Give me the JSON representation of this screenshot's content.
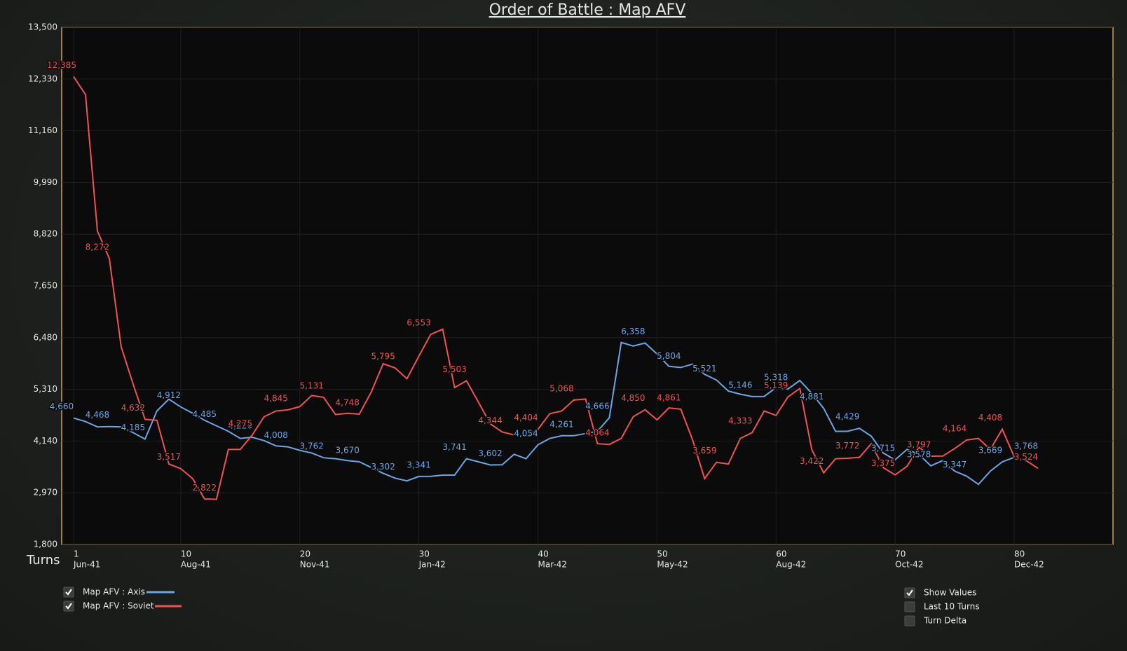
{
  "chart_data": {
    "type": "line",
    "title": "Order of Battle : Map AFV",
    "x_label": "Turns",
    "x": [
      1,
      2,
      3,
      4,
      5,
      6,
      7,
      8,
      9,
      10,
      11,
      12,
      13,
      14,
      15,
      16,
      17,
      18,
      19,
      20,
      21,
      22,
      23,
      24,
      25,
      26,
      27,
      28,
      29,
      30,
      31,
      32,
      33,
      34,
      35,
      36,
      37,
      38,
      39,
      40,
      41,
      42,
      43,
      44,
      45,
      46,
      47,
      48,
      49,
      50,
      51,
      52,
      53,
      54,
      55,
      56,
      57,
      58,
      59,
      60,
      61,
      62,
      63,
      64,
      65,
      66,
      67,
      68,
      69,
      70,
      71,
      72,
      73,
      74,
      75,
      76,
      77,
      78,
      79,
      80,
      81,
      82
    ],
    "xlim": [
      0,
      88.3
    ],
    "xticks": [
      1,
      10,
      20,
      30,
      40,
      50,
      60,
      70,
      80
    ],
    "xtick_dates": [
      "Jun-41",
      "Aug-41",
      "Nov-41",
      "Jan-42",
      "Mar-42",
      "May-42",
      "Aug-42",
      "Oct-42",
      "Dec-42"
    ],
    "ylim": [
      1800,
      13500
    ],
    "yticks": [
      {
        "value": 1800,
        "label": "1,800"
      },
      {
        "value": 2970,
        "label": "2,970"
      },
      {
        "value": 4140,
        "label": "4,140"
      },
      {
        "value": 5310,
        "label": "5,310"
      },
      {
        "value": 6480,
        "label": "6,480"
      },
      {
        "value": 7650,
        "label": "7,650"
      },
      {
        "value": 8820,
        "label": "8,820"
      },
      {
        "value": 9990,
        "label": "9,990"
      },
      {
        "value": 11160,
        "label": "11,160"
      },
      {
        "value": 12330,
        "label": "12,330"
      },
      {
        "value": 13500,
        "label": "13,500"
      }
    ],
    "grid": true,
    "series": [
      {
        "name": "Map AFV : Axis",
        "color": "#6aa6e6",
        "checked": true,
        "values": [
          4660,
          4580,
          4460,
          4468,
          4460,
          4330,
          4185,
          4820,
          5090,
          4912,
          4770,
          4610,
          4485,
          4360,
          4200,
          4226,
          4150,
          4030,
          4008,
          3930,
          3870,
          3762,
          3740,
          3700,
          3670,
          3540,
          3410,
          3302,
          3240,
          3340,
          3341,
          3370,
          3370,
          3741,
          3670,
          3600,
          3602,
          3840,
          3740,
          4054,
          4200,
          4260,
          4261,
          4310,
          4360,
          4666,
          6370,
          6290,
          6358,
          6110,
          5830,
          5804,
          5880,
          5650,
          5521,
          5270,
          5200,
          5146,
          5150,
          5350,
          5318,
          5510,
          5220,
          4881,
          4360,
          4360,
          4429,
          4250,
          3870,
          3715,
          3950,
          3840,
          3578,
          3700,
          3460,
          3347,
          3160,
          3460,
          3669,
          3770,
          3700,
          3768
        ],
        "value_labels": [
          "4,660",
          null,
          null,
          "4,468",
          null,
          null,
          "4,185",
          null,
          null,
          "4,912",
          null,
          null,
          "4,485",
          null,
          null,
          "4,226",
          null,
          null,
          "4,008",
          null,
          null,
          "3,762",
          null,
          null,
          "3,670",
          null,
          null,
          "3,302",
          null,
          null,
          "3,341",
          null,
          null,
          "3,741",
          null,
          null,
          "3,602",
          null,
          null,
          "4,054",
          null,
          null,
          "4,261",
          null,
          null,
          "4,666",
          null,
          null,
          "6,358",
          null,
          null,
          "5,804",
          null,
          null,
          "5,521",
          null,
          null,
          "5,146",
          null,
          null,
          "5,318",
          null,
          null,
          "4,881",
          null,
          null,
          "4,429",
          null,
          null,
          "3,715",
          null,
          null,
          "3,578",
          null,
          null,
          "3,347",
          null,
          null,
          "3,669",
          null,
          null,
          "3,768"
        ]
      },
      {
        "name": "Map AFV : Soviet",
        "color": "#f05252",
        "checked": true,
        "values": [
          12385,
          11980,
          8890,
          8272,
          6270,
          5430,
          4632,
          4610,
          3620,
          3517,
          3290,
          2830,
          2822,
          3950,
          3950,
          4275,
          4690,
          4820,
          4845,
          4920,
          5170,
          5131,
          4740,
          4770,
          4748,
          5250,
          5890,
          5795,
          5550,
          6060,
          6553,
          6670,
          5350,
          5503,
          5020,
          4530,
          4344,
          4280,
          4250,
          4404,
          4760,
          4820,
          5068,
          5090,
          4080,
          4064,
          4200,
          4690,
          4850,
          4620,
          4890,
          4861,
          4160,
          3290,
          3659,
          3620,
          4200,
          4333,
          4820,
          4720,
          5139,
          5330,
          3950,
          3422,
          3740,
          3750,
          3772,
          4080,
          3540,
          3375,
          3570,
          4000,
          3797,
          3800,
          3970,
          4164,
          4200,
          3950,
          4408,
          3790,
          3700,
          3524
        ],
        "value_labels": [
          "12,385",
          null,
          null,
          "8,272",
          null,
          null,
          "4,632",
          null,
          null,
          "3,517",
          null,
          null,
          "2,822",
          null,
          null,
          "4,275",
          null,
          null,
          "4,845",
          null,
          null,
          "5,131",
          null,
          null,
          "4,748",
          null,
          null,
          "5,795",
          null,
          null,
          "6,553",
          null,
          null,
          "5,503",
          null,
          null,
          "4,344",
          null,
          null,
          "4,404",
          null,
          null,
          "5,068",
          null,
          null,
          "4,064",
          null,
          null,
          "4,850",
          null,
          null,
          "4,861",
          null,
          null,
          "3,659",
          null,
          null,
          "4,333",
          null,
          null,
          "5,139",
          null,
          null,
          "3,422",
          null,
          null,
          "3,772",
          null,
          null,
          "3,375",
          null,
          null,
          "3,797",
          null,
          null,
          "4,164",
          null,
          null,
          "4,408",
          null,
          null,
          "3,524"
        ]
      }
    ]
  },
  "options": [
    {
      "label": "Show Values",
      "checked": true
    },
    {
      "label": "Last 10 Turns",
      "checked": false
    },
    {
      "label": "Turn Delta",
      "checked": false
    }
  ]
}
